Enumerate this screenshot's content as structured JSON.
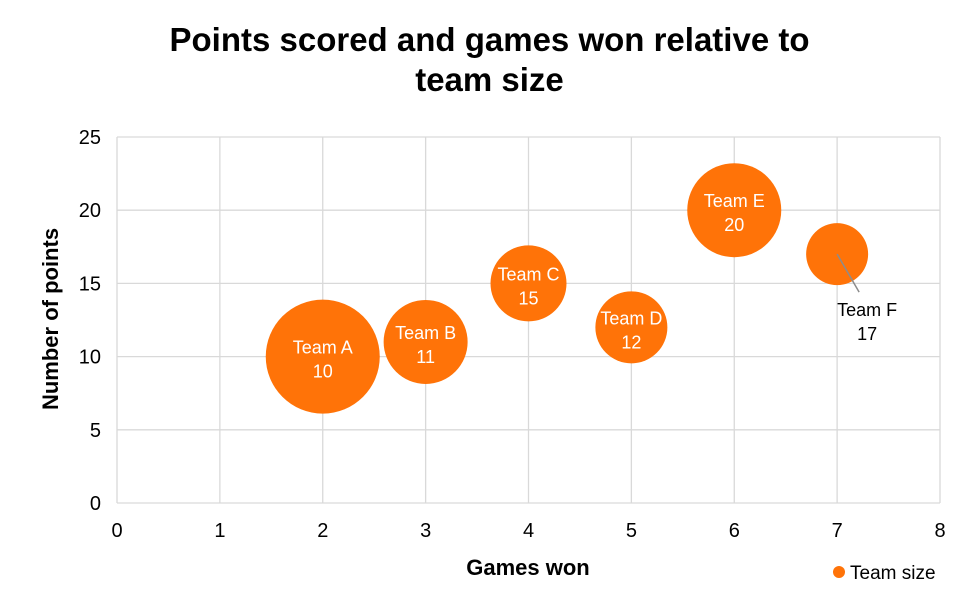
{
  "title_lines": [
    "Points scored and games won relative to",
    "team size"
  ],
  "chart_data": {
    "type": "scatter",
    "subtype": "bubble",
    "title": "Points scored and games won relative to team size",
    "xlabel": "Games won",
    "ylabel": "Number of points",
    "xlim": [
      0,
      8
    ],
    "ylim": [
      0,
      25
    ],
    "x_ticks": [
      "0",
      "1",
      "2",
      "3",
      "4",
      "5",
      "6",
      "7",
      "8"
    ],
    "y_ticks": [
      "0",
      "5",
      "10",
      "15",
      "20",
      "25"
    ],
    "grid": true,
    "legend": "bottom-right",
    "series": [
      {
        "name": "Team size",
        "color": "#FF7308",
        "points": [
          {
            "label": "Team A",
            "x": 2,
            "y": 10,
            "size": 10
          },
          {
            "label": "Team B",
            "x": 3,
            "y": 11,
            "size": 11
          },
          {
            "label": "Team C",
            "x": 4,
            "y": 15,
            "size": 15
          },
          {
            "label": "Team D",
            "x": 5,
            "y": 12,
            "size": 12
          },
          {
            "label": "Team E",
            "x": 6,
            "y": 20,
            "size": 20
          },
          {
            "label": "Team F",
            "x": 7,
            "y": 17,
            "size": 17
          }
        ]
      }
    ]
  }
}
